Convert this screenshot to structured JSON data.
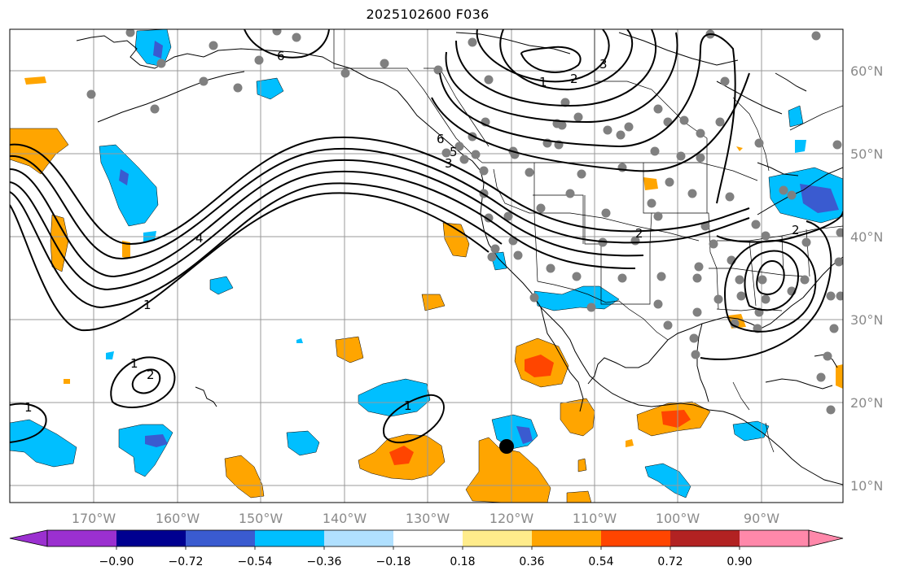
{
  "title": "2025102600 F036",
  "lon_ticks": [
    "170°W",
    "160°W",
    "150°W",
    "140°W",
    "130°W",
    "120°W",
    "110°W",
    "100°W",
    "90°W"
  ],
  "lat_ticks": [
    "60°N",
    "50°N",
    "40°N",
    "30°N",
    "20°N",
    "10°N"
  ],
  "contour_labels": [
    "6",
    "1",
    "2",
    "3",
    "4",
    "5",
    "6",
    "1",
    "2",
    "3",
    "2",
    "1",
    "2",
    "1",
    "1"
  ],
  "colorbar": {
    "ticks": [
      "−0.90",
      "−0.72",
      "−0.54",
      "−0.36",
      "−0.18",
      "0.18",
      "0.36",
      "0.54",
      "0.72",
      "0.90"
    ],
    "colors": [
      "#9b30d0",
      "#000090",
      "#3a5bd0",
      "#00bfff",
      "#b0e0ff",
      "#ffffff",
      "#ffec8b",
      "#ffa500",
      "#ff4500",
      "#b22222",
      "#ff88aa"
    ]
  },
  "colors": {
    "grid": "#999999",
    "contour": "#000000",
    "station": "#808080",
    "coast": "#000000"
  }
}
